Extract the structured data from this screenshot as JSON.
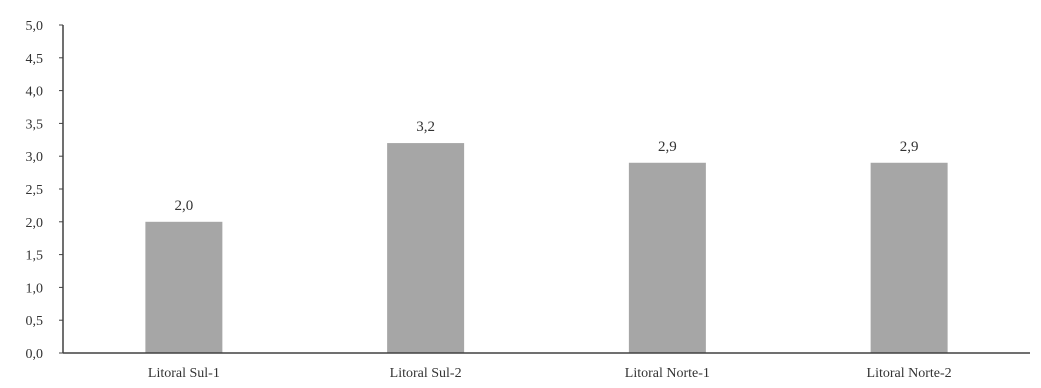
{
  "chart_data": {
    "type": "bar",
    "categories": [
      "Litoral Sul-1",
      "Litoral Sul-2",
      "Litoral Norte-1",
      "Litoral Norte-2"
    ],
    "values": [
      2.0,
      3.2,
      2.9,
      2.9
    ],
    "data_labels": [
      "2,0",
      "3,2",
      "2,9",
      "2,9"
    ],
    "ylim": [
      0,
      5
    ],
    "yticks": [
      0,
      0.5,
      1,
      1.5,
      2,
      2.5,
      3,
      3.5,
      4,
      4.5,
      5
    ],
    "ytick_labels": [
      "0,0",
      "0,5",
      "1,0",
      "1,5",
      "2,0",
      "2,5",
      "3,0",
      "3,5",
      "4,0",
      "4,5",
      "5,0"
    ],
    "grid": false,
    "legend": "none",
    "bar_color": "#a6a6a6",
    "axis_color": "#404040"
  }
}
